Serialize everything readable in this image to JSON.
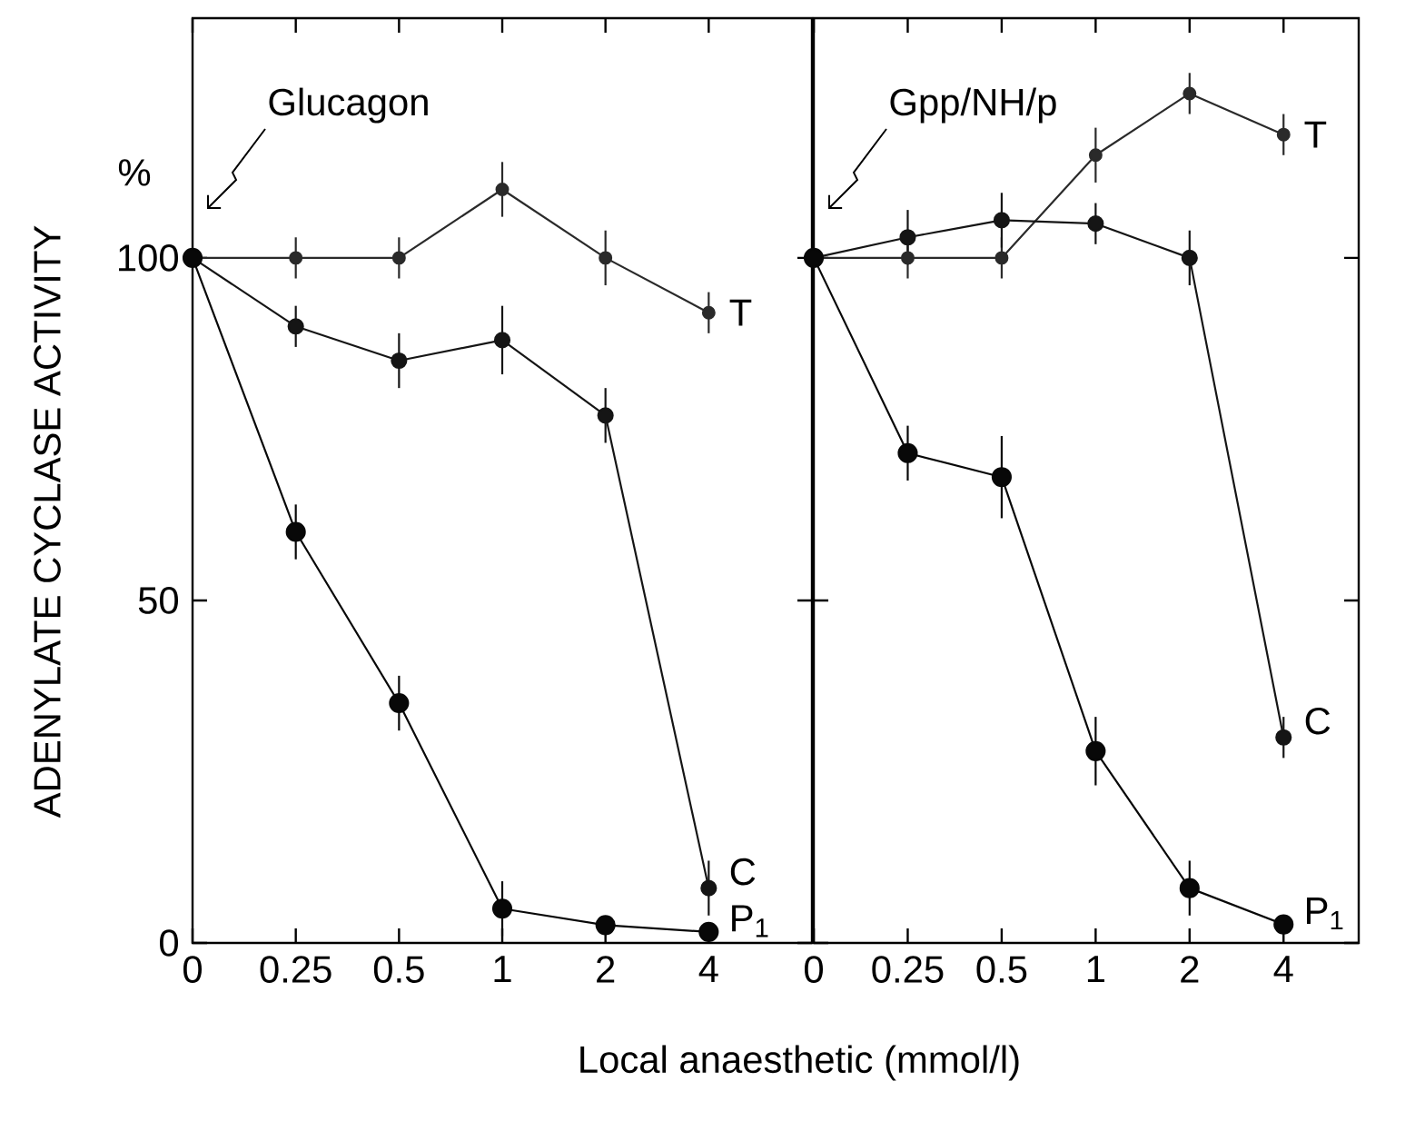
{
  "chart_data": [
    {
      "type": "line",
      "ylabel": "ADENYLATE CYCLASE ACTIVITY",
      "xlabel": "Local anaesthetic (mmol/l)",
      "categories": [
        "0",
        "0.25",
        "0.5",
        "1",
        "2",
        "4"
      ],
      "ylim": [
        0,
        135
      ],
      "yticks": [
        0,
        50,
        100
      ],
      "marker": "circle",
      "line_style": "solid",
      "annotations": [
        "%",
        "Glucagon"
      ],
      "series": [
        {
          "name": "T",
          "color": "#2a2a2a",
          "values": [
            100,
            100,
            100,
            110,
            100,
            92
          ],
          "errors": [
            null,
            3,
            3,
            4,
            4,
            3
          ]
        },
        {
          "name": "C",
          "color": "#151515",
          "values": [
            100,
            90,
            85,
            88,
            77,
            8
          ],
          "errors": [
            null,
            3,
            4,
            5,
            4,
            4
          ]
        },
        {
          "name": "P$_{1}$",
          "color": "#080808",
          "values": [
            100,
            60,
            35,
            5,
            2.6,
            1.6
          ],
          "errors": [
            null,
            4,
            4,
            4,
            null,
            null
          ]
        }
      ]
    },
    {
      "type": "line",
      "categories": [
        "0",
        "0.25",
        "0.5",
        "1",
        "2",
        "4"
      ],
      "ylim": [
        0,
        135
      ],
      "yticks": [
        0,
        50,
        100
      ],
      "tick_labels": "x",
      "marker": "circle",
      "line_style": "solid",
      "annotations": [
        "Gpp/NH/p"
      ],
      "series": [
        {
          "name": "T",
          "color": "#2a2a2a",
          "values": [
            100,
            100,
            100,
            115,
            124,
            118
          ],
          "errors": [
            null,
            3,
            3,
            4,
            3,
            3
          ]
        },
        {
          "name": "C",
          "color": "#151515",
          "values": [
            100,
            103,
            105.5,
            105,
            100,
            30
          ],
          "errors": [
            null,
            4,
            4,
            3,
            4,
            3
          ]
        },
        {
          "name": "P$_{1}$",
          "color": "#080808",
          "values": [
            100,
            71.5,
            68,
            28,
            8,
            2.7
          ],
          "errors": [
            null,
            4,
            6,
            5,
            4,
            null
          ]
        }
      ]
    }
  ]
}
